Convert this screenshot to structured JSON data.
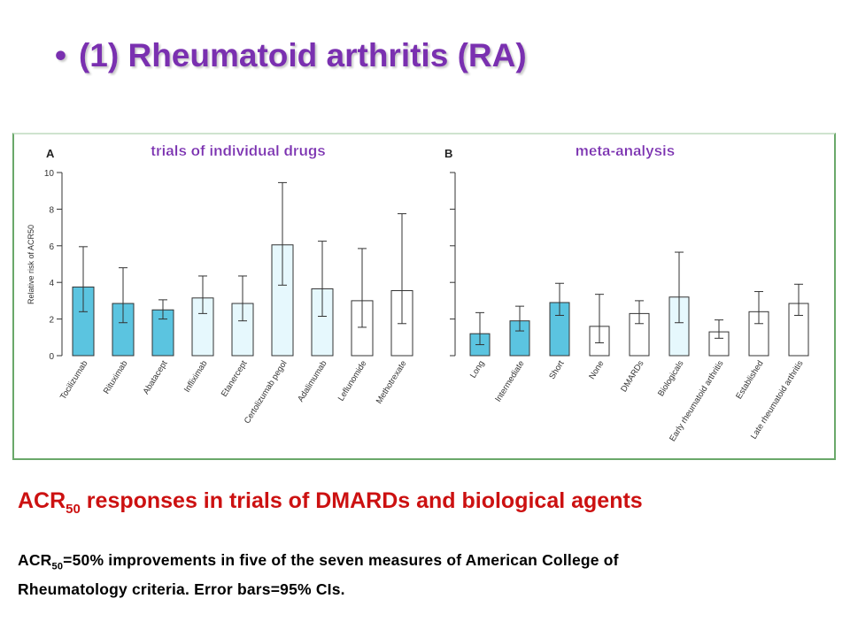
{
  "slide": {
    "bullet": "•",
    "title": "(1) Rheumatoid arthritis (RA)",
    "caption_prefix": "ACR",
    "caption_sub": "50",
    "caption_rest": " responses in trials of DMARDs and biological agents",
    "note_line1_prefix": "ACR",
    "note_line1_sub": "50",
    "note_line1_rest": "=50% improvements in five of the seven measures of American College of",
    "note_line2": "Rheumatology criteria. Error bars=95% CIs."
  },
  "colors": {
    "title": "#7a30b0",
    "caption": "#cc1111",
    "panel_heading": "#7a30b0",
    "bar_dark": "#5bc4e0",
    "bar_light": "#e6f8fd",
    "bar_white": "#ffffff"
  },
  "chart_data": [
    {
      "type": "bar",
      "panel_letter": "A",
      "heading": "trials of individual drugs",
      "ylabel": "Relative risk of ACR50",
      "ylim": [
        0,
        10
      ],
      "yticks": [
        "0",
        "2",
        "4",
        "6",
        "8",
        "10"
      ],
      "grid": false,
      "error_bars": "95% CI",
      "categories": [
        "Tocilizumab",
        "Rituximab",
        "Abatacept",
        "Infliximab",
        "Etanercept",
        "Certolizumab pegol",
        "Adalimumab",
        "Leflunomide",
        "Methotrexate"
      ],
      "values": [
        3.75,
        2.85,
        2.5,
        3.15,
        2.85,
        6.05,
        3.65,
        3.0,
        3.55
      ],
      "ci_low": [
        2.4,
        1.8,
        2.0,
        2.3,
        1.9,
        3.85,
        2.15,
        1.55,
        1.75
      ],
      "ci_high": [
        5.95,
        4.8,
        3.05,
        4.35,
        4.35,
        9.45,
        6.25,
        5.85,
        7.75
      ],
      "fill": [
        "dark",
        "dark",
        "dark",
        "light",
        "light",
        "light",
        "light",
        "white",
        "white"
      ]
    },
    {
      "type": "bar",
      "panel_letter": "B",
      "heading": "meta-analysis",
      "ylim": [
        0,
        10
      ],
      "grid": false,
      "error_bars": "95% CI",
      "categories": [
        "Long",
        "Intermediate",
        "Short",
        "None",
        "DMARDs",
        "Biologicals",
        "Early rheumatoid arthritis",
        "Established",
        "Late rheumatoid arthritis"
      ],
      "values": [
        1.2,
        1.9,
        2.9,
        1.6,
        2.3,
        3.2,
        1.3,
        2.4,
        2.85
      ],
      "ci_low": [
        0.6,
        1.35,
        2.2,
        0.7,
        1.75,
        1.8,
        0.95,
        1.75,
        2.2
      ],
      "ci_high": [
        2.35,
        2.7,
        3.95,
        3.35,
        3.0,
        5.65,
        1.95,
        3.5,
        3.9
      ],
      "fill": [
        "dark",
        "dark",
        "dark",
        "white",
        "white",
        "light",
        "white",
        "white",
        "white"
      ]
    }
  ]
}
